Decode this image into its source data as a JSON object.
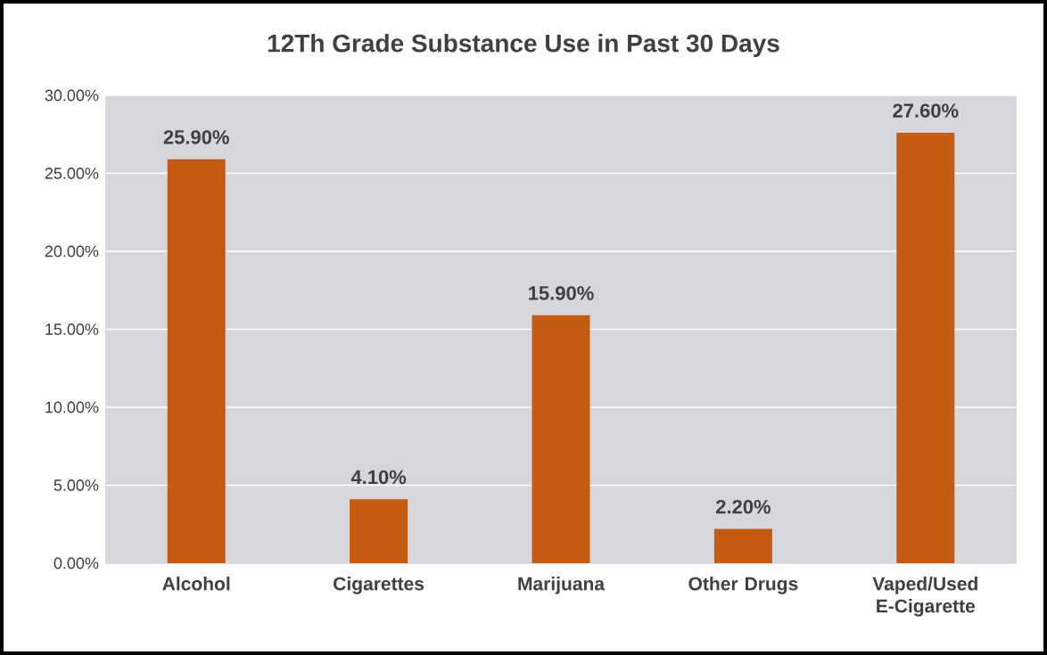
{
  "chart_data": {
    "type": "bar",
    "title": "12Th Grade Substance Use in Past 30 Days",
    "categories": [
      "Alcohol",
      "Cigarettes",
      "Marijuana",
      "Other Drugs",
      "Vaped/Used E-Cigarette"
    ],
    "values": [
      25.9,
      4.1,
      15.9,
      2.2,
      27.6
    ],
    "value_labels": [
      "25.90%",
      "4.10%",
      "15.90%",
      "2.20%",
      "27.60%"
    ],
    "color": "#c55a11",
    "ylim": [
      0,
      30
    ],
    "yticks": [
      {
        "value": 0,
        "label": "0.00%"
      },
      {
        "value": 5,
        "label": "5.00%"
      },
      {
        "value": 10,
        "label": "10.00%"
      },
      {
        "value": 15,
        "label": "15.00%"
      },
      {
        "value": 20,
        "label": "20.00%"
      },
      {
        "value": 25,
        "label": "25.00%"
      },
      {
        "value": 30,
        "label": "30.00%"
      }
    ],
    "grid": "y"
  }
}
